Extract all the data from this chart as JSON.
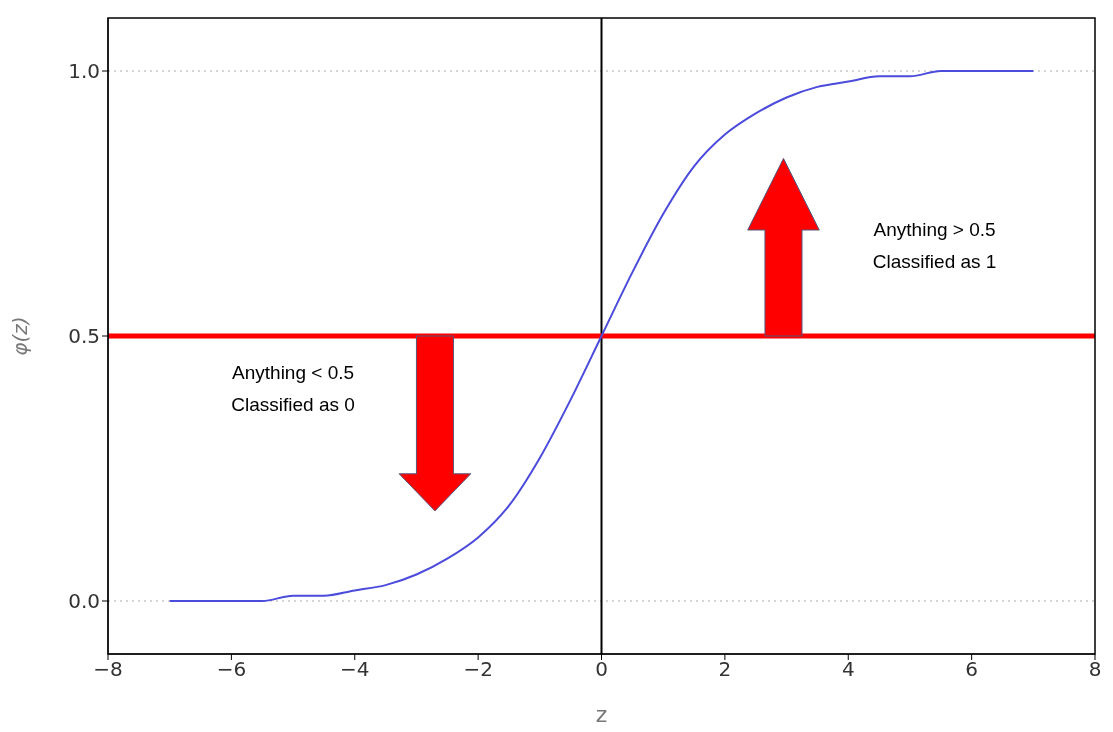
{
  "chart_data": {
    "type": "line",
    "xlabel": "z",
    "ylabel": "φ(z)",
    "xlim": [
      -8,
      8
    ],
    "xticks": [
      {
        "value": -8,
        "label": "−8"
      },
      {
        "value": -6,
        "label": "−6"
      },
      {
        "value": -4,
        "label": "−4"
      },
      {
        "value": -2,
        "label": "−2"
      },
      0,
      2,
      4,
      6,
      8
    ],
    "ylim": [
      -0.1,
      1.1
    ],
    "yticks": [
      {
        "value": 0,
        "label": "0.0"
      },
      {
        "value": 0.5,
        "label": "0.5"
      },
      {
        "value": 1,
        "label": "1.0"
      }
    ],
    "grid": "y",
    "x": [
      -7,
      -6.5,
      -6,
      -5.5,
      -5,
      -4.5,
      -4,
      -3.5,
      -3,
      -2.5,
      -2,
      -1.5,
      -1,
      -0.5,
      0,
      0.5,
      1,
      1.5,
      2,
      2.5,
      3,
      3.5,
      4,
      4.5,
      5,
      5.5,
      6,
      6.5,
      7
    ],
    "series": [
      {
        "color": "#4b4bdc",
        "values": [
          0.0,
          0.0,
          0.0,
          0.0,
          0.01,
          0.01,
          0.02,
          0.03,
          0.05,
          0.08,
          0.12,
          0.18,
          0.27,
          0.38,
          0.5,
          0.62,
          0.73,
          0.82,
          0.88,
          0.92,
          0.95,
          0.97,
          0.98,
          0.99,
          0.99,
          1.0,
          1.0,
          1.0,
          1.0
        ]
      }
    ],
    "ref_lines": [
      {
        "axis": "x",
        "value": 0,
        "color": "#000000"
      },
      {
        "axis": "y",
        "value": 0.5,
        "color": "#ff0000"
      }
    ],
    "annotations": [
      "Anything < 0.5\nClassified as 0",
      "Anything > 0.5\nClassified as 1"
    ]
  }
}
